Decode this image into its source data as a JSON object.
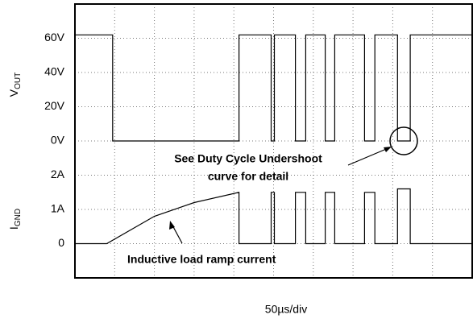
{
  "chart_data": {
    "type": "line",
    "xlabel": "50µs/div",
    "ylabel": {
      "main": "V",
      "sub": "OUT"
    },
    "y2label": {
      "main": "I",
      "sub": "GND"
    },
    "xlim": [
      0,
      10
    ],
    "ylim": [
      -80,
      80
    ],
    "y2lim": [
      -1,
      7
    ],
    "yticks": [
      {
        "value": 0,
        "label": "0V"
      },
      {
        "value": 20,
        "label": "20V"
      },
      {
        "value": 40,
        "label": "40V"
      },
      {
        "value": 60,
        "label": "60V"
      }
    ],
    "y2ticks": [
      0,
      {
        "value": 1,
        "label": "1A"
      },
      {
        "value": 2,
        "label": "2A"
      }
    ],
    "grid": true,
    "annotations": [
      "See Duty Cycle Undershoot",
      "curve for detail",
      "Inductive load ramp current"
    ],
    "series": [
      {
        "axis": "y",
        "color": "#000000",
        "x": [
          0,
          0.95,
          0.95,
          4.13,
          4.13,
          4.94,
          4.94,
          5.02,
          5.02,
          5.55,
          5.55,
          5.81,
          5.81,
          6.3,
          6.3,
          6.54,
          6.54,
          7.29,
          7.29,
          7.55,
          7.55,
          8.12,
          8.12,
          8.44,
          8.44,
          10
        ],
        "values": [
          62,
          62,
          0,
          0,
          62,
          62,
          0,
          0,
          62,
          62,
          0,
          0,
          62,
          62,
          0,
          0,
          62,
          62,
          0,
          0,
          62,
          62,
          0,
          0,
          62,
          62
        ]
      },
      {
        "axis": "y2",
        "color": "#000000",
        "x": [
          0,
          0.8,
          2,
          3,
          4.13,
          4.13,
          4.94,
          4.94,
          5.02,
          5.02,
          5.55,
          5.55,
          5.81,
          5.81,
          6.3,
          6.3,
          6.54,
          6.54,
          7.29,
          7.29,
          7.55,
          7.55,
          8.12,
          8.12,
          8.44,
          8.44,
          10
        ],
        "values": [
          0,
          0,
          0.8,
          1.2,
          1.5,
          0,
          0,
          1.5,
          1.5,
          0,
          0,
          1.5,
          1.5,
          0,
          0,
          1.5,
          1.5,
          0,
          0,
          1.5,
          1.5,
          0,
          0,
          1.6,
          1.6,
          0,
          0
        ]
      }
    ]
  }
}
